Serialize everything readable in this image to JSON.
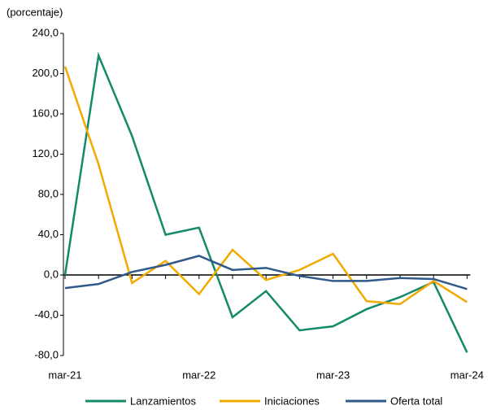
{
  "chart_data": {
    "type": "line",
    "y_label": "(porcentaje)",
    "categories": [
      "mar-21",
      null,
      null,
      null,
      "mar-22",
      null,
      null,
      null,
      "mar-23",
      null,
      null,
      null,
      "mar-24"
    ],
    "series": [
      {
        "name": "Lanzamientos",
        "color": "#138a6a",
        "values": [
          0,
          218,
          138,
          40,
          47,
          -42,
          -16,
          -55,
          -51,
          -34,
          -22,
          -7,
          -77
        ]
      },
      {
        "name": "Iniciaciones",
        "color": "#f2a900",
        "values": [
          207,
          110,
          -8,
          14,
          -19,
          25,
          -5,
          5,
          21,
          -26,
          -29,
          -6,
          -27
        ]
      },
      {
        "name": "Oferta total",
        "color": "#2f5a8a",
        "values": [
          -13,
          -9,
          3,
          10,
          19,
          5,
          7,
          -1,
          -6,
          -6,
          -3,
          -4,
          -14
        ]
      }
    ],
    "ylim": [
      -80,
      240
    ],
    "yticks": [
      {
        "value": -80,
        "label": "-80,0"
      },
      {
        "value": -40,
        "label": "-40,0"
      },
      {
        "value": 0,
        "label": "0,0"
      },
      {
        "value": 40,
        "label": "40,0"
      },
      {
        "value": 80,
        "label": "80,0"
      },
      {
        "value": 120,
        "label": "120,0"
      },
      {
        "value": 160,
        "label": "160,0"
      },
      {
        "value": 200,
        "label": "200,0"
      },
      {
        "value": 240,
        "label": "240,0"
      }
    ],
    "legend": "bottom"
  }
}
